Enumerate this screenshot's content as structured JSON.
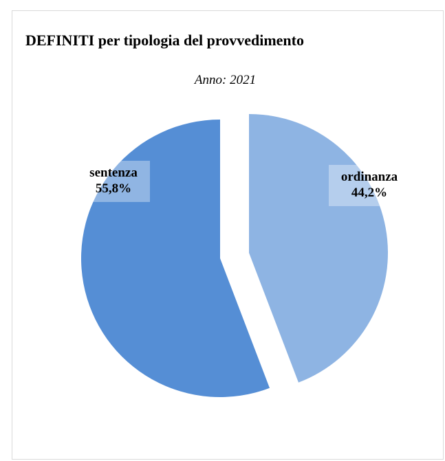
{
  "chart_data": {
    "type": "pie",
    "title": "DEFINITI per tipologia del provvedimento",
    "subtitle": "Anno: 2021",
    "slices": [
      {
        "label": "ordinanza",
        "value": 44.2,
        "value_label": "44,2%",
        "color": "#8eb4e3"
      },
      {
        "label": "sentenza",
        "value": 55.8,
        "value_label": "55,8%",
        "color": "#558ed5"
      }
    ],
    "exploded": true,
    "legend": "none"
  }
}
